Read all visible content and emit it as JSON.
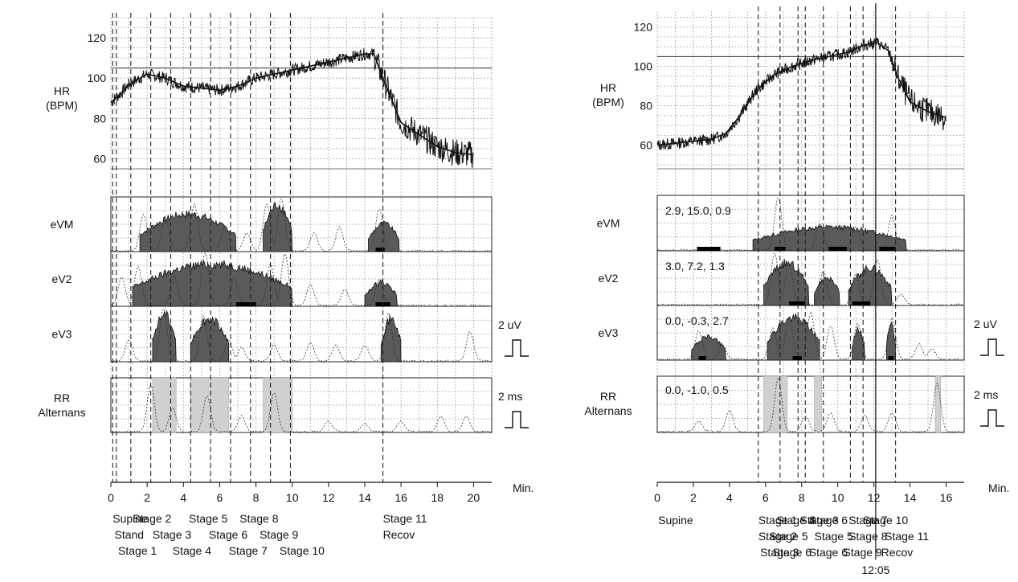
{
  "chart_data": [
    {
      "type": "line",
      "panel": "left",
      "x_unit": "Min.",
      "xlim": [
        0,
        21
      ],
      "x_ticks": [
        0,
        2,
        4,
        6,
        8,
        10,
        12,
        14,
        16,
        18,
        20
      ],
      "hr_ylabel": [
        "HR",
        "(BPM)"
      ],
      "hr_ylim": [
        55,
        130
      ],
      "hr_ticks": [
        60,
        80,
        100,
        120
      ],
      "hr_reference": 105,
      "hr_trend": {
        "x": [
          0,
          0.5,
          1,
          2,
          3,
          4,
          5,
          6,
          7,
          8,
          9,
          10,
          11,
          12,
          13,
          14,
          14.5,
          15,
          16,
          17,
          18,
          19,
          20
        ],
        "y": [
          88,
          92,
          97,
          102,
          100,
          96,
          95,
          94,
          96,
          100,
          102,
          104,
          106,
          108,
          110,
          112,
          112,
          100,
          78,
          72,
          66,
          63,
          62
        ]
      },
      "traces": {
        "eVM": {
          "label": "eVM",
          "annotation": "",
          "blobs": [
            [
              1.6,
              6.9,
              0.8
            ],
            [
              8.4,
              10.0,
              1.0
            ],
            [
              14.2,
              15.9,
              0.6
            ]
          ],
          "peaks": [
            [
              1.8,
              0.7
            ],
            [
              3.0,
              0.62
            ],
            [
              4.6,
              0.9
            ],
            [
              6.3,
              0.5
            ],
            [
              7.5,
              0.35
            ],
            [
              8.6,
              0.9
            ],
            [
              9.4,
              1.0
            ],
            [
              11.2,
              0.35
            ],
            [
              12.6,
              0.45
            ],
            [
              14.8,
              0.8
            ]
          ],
          "bars": [
            [
              14.6,
              15.1
            ]
          ]
        },
        "eV2": {
          "label": "eV2",
          "annotation": "",
          "blobs": [
            [
              1.2,
              10.0,
              0.9
            ],
            [
              14.0,
              15.8,
              0.5
            ]
          ],
          "peaks": [
            [
              0.6,
              0.55
            ],
            [
              1.5,
              0.75
            ],
            [
              3.5,
              0.55
            ],
            [
              5.2,
              1.0
            ],
            [
              6.8,
              0.5
            ],
            [
              8.8,
              0.8
            ],
            [
              9.6,
              1.0
            ],
            [
              11.0,
              0.4
            ],
            [
              12.9,
              0.3
            ],
            [
              14.8,
              0.5
            ]
          ],
          "bars": [
            [
              6.9,
              8.0
            ],
            [
              14.6,
              15.4
            ]
          ]
        },
        "eV3": {
          "label": "eV3",
          "annotation": "",
          "blobs": [
            [
              2.3,
              3.6,
              1.0
            ],
            [
              4.4,
              6.5,
              0.9
            ],
            [
              14.9,
              16.0,
              0.9
            ]
          ],
          "peaks": [
            [
              1.0,
              0.4
            ],
            [
              2.9,
              1.0
            ],
            [
              5.1,
              0.85
            ],
            [
              6.5,
              0.4
            ],
            [
              7.2,
              0.25
            ],
            [
              9.0,
              0.3
            ],
            [
              11.0,
              0.35
            ],
            [
              12.4,
              0.3
            ],
            [
              14.0,
              0.3
            ],
            [
              15.3,
              0.9
            ],
            [
              19.8,
              0.55
            ]
          ],
          "bars": []
        }
      },
      "rr": {
        "label": [
          "RR",
          "Alternans"
        ],
        "shades": [
          [
            2.3,
            3.6
          ],
          [
            4.4,
            6.5
          ],
          [
            8.4,
            10.0
          ]
        ],
        "peaks": [
          [
            2.2,
            0.9
          ],
          [
            3.4,
            0.45
          ],
          [
            5.3,
            0.7
          ],
          [
            7.2,
            0.3
          ],
          [
            9.0,
            0.75
          ],
          [
            12.0,
            0.2
          ],
          [
            14.0,
            0.15
          ],
          [
            16.0,
            0.2
          ],
          [
            18.2,
            0.3
          ],
          [
            19.6,
            0.3
          ]
        ]
      },
      "scale_bars": [
        "2 uV",
        "2 ms"
      ],
      "events": [
        0.1,
        0.3,
        1.1,
        2.2,
        3.3,
        4.4,
        5.5,
        6.6,
        7.7,
        8.8,
        9.9,
        15.0
      ],
      "stage_labels": [
        {
          "x": 0.1,
          "row": 0,
          "text": "Supine"
        },
        {
          "x": 1.2,
          "row": 0,
          "text": "Stage 2"
        },
        {
          "x": 4.3,
          "row": 0,
          "text": "Stage 5"
        },
        {
          "x": 7.1,
          "row": 0,
          "text": "Stage 8"
        },
        {
          "x": 15.0,
          "row": 0,
          "text": "Stage 11"
        },
        {
          "x": 0.2,
          "row": 1,
          "text": "Stand"
        },
        {
          "x": 2.3,
          "row": 1,
          "text": "Stage 3"
        },
        {
          "x": 5.4,
          "row": 1,
          "text": "Stage 6"
        },
        {
          "x": 8.2,
          "row": 1,
          "text": "Stage 9"
        },
        {
          "x": 15.0,
          "row": 1,
          "text": "Recov"
        },
        {
          "x": 0.4,
          "row": 2,
          "text": "Stage 1"
        },
        {
          "x": 3.4,
          "row": 2,
          "text": "Stage 4"
        },
        {
          "x": 6.5,
          "row": 2,
          "text": "Stage 7"
        },
        {
          "x": 9.3,
          "row": 2,
          "text": "Stage 10"
        }
      ],
      "time_annotation": ""
    },
    {
      "type": "line",
      "panel": "right",
      "x_unit": "Min.",
      "xlim": [
        0,
        17
      ],
      "x_ticks": [
        0,
        2,
        4,
        6,
        8,
        10,
        12,
        14,
        16
      ],
      "hr_ylabel": [
        "HR",
        "(BPM)"
      ],
      "hr_ylim": [
        48,
        128
      ],
      "hr_ticks": [
        60,
        80,
        100,
        120
      ],
      "hr_reference": 105,
      "hr_trend": {
        "x": [
          0,
          1,
          2,
          3,
          3.8,
          4.5,
          5.5,
          6.5,
          7.5,
          8.5,
          9.5,
          10.5,
          11.5,
          12.2,
          12.8,
          13.3,
          14,
          15,
          16
        ],
        "y": [
          60,
          61,
          62,
          63,
          66,
          74,
          88,
          96,
          100,
          103,
          105,
          107,
          111,
          112,
          108,
          95,
          82,
          77,
          74
        ]
      },
      "traces": {
        "eVM": {
          "label": "eVM",
          "annotation": "2.9, 15.0, 0.9",
          "blobs": [
            [
              5.3,
              13.8,
              0.5
            ]
          ],
          "peaks": [
            [
              6.7,
              1.0
            ],
            [
              9.0,
              0.5
            ],
            [
              11.0,
              0.45
            ],
            [
              13.0,
              0.65
            ]
          ],
          "bars": [
            [
              2.2,
              3.5
            ],
            [
              6.5,
              7.1
            ],
            [
              9.5,
              10.5
            ],
            [
              12.3,
              13.2
            ]
          ]
        },
        "eV2": {
          "label": "eV2",
          "annotation": "3.0, 7.2, 1.3",
          "blobs": [
            [
              5.9,
              8.4,
              0.9
            ],
            [
              8.7,
              10.1,
              0.6
            ],
            [
              10.6,
              13.0,
              0.8
            ]
          ],
          "peaks": [
            [
              6.5,
              1.0
            ],
            [
              7.3,
              0.8
            ],
            [
              9.2,
              0.65
            ],
            [
              11.0,
              0.6
            ],
            [
              12.2,
              0.85
            ],
            [
              13.5,
              0.2
            ]
          ],
          "bars": [
            [
              7.3,
              8.2
            ],
            [
              10.8,
              11.8
            ]
          ]
        },
        "eV3": {
          "label": "eV3",
          "annotation": "0.0, -0.3, 2.7",
          "blobs": [
            [
              1.9,
              3.8,
              0.5
            ],
            [
              6.1,
              9.0,
              0.9
            ],
            [
              10.8,
              11.5,
              0.65
            ],
            [
              12.7,
              13.2,
              0.75
            ]
          ],
          "peaks": [
            [
              2.3,
              0.55
            ],
            [
              3.6,
              0.3
            ],
            [
              6.4,
              0.6
            ],
            [
              7.3,
              0.8
            ],
            [
              8.5,
              0.9
            ],
            [
              9.6,
              0.65
            ],
            [
              11.1,
              0.7
            ],
            [
              13.0,
              0.8
            ],
            [
              14.5,
              0.3
            ],
            [
              15.2,
              0.2
            ]
          ],
          "bars": [
            [
              2.3,
              2.7
            ],
            [
              7.5,
              8.0
            ],
            [
              12.8,
              13.1
            ]
          ]
        }
      },
      "rr": {
        "label": [
          "RR",
          "Alternans"
        ],
        "shades": [
          [
            5.9,
            7.2
          ],
          [
            8.7,
            9.1
          ],
          [
            15.4,
            15.7
          ]
        ],
        "peaks": [
          [
            2.3,
            0.2
          ],
          [
            4.0,
            0.4
          ],
          [
            6.7,
            1.0
          ],
          [
            8.2,
            0.3
          ],
          [
            9.6,
            0.35
          ],
          [
            11.5,
            0.3
          ],
          [
            13.0,
            0.35
          ],
          [
            15.5,
            0.9
          ]
        ]
      },
      "scale_bars": [
        "2 uV",
        "2 ms"
      ],
      "events": [
        5.6,
        6.8,
        7.8,
        8.2,
        9.2,
        10.7,
        11.4,
        12.1,
        13.2
      ],
      "stage_labels": [
        {
          "x": 0.05,
          "row": 0,
          "text": "Supine"
        },
        {
          "x": 5.6,
          "row": 0,
          "text": "Stage 1"
        },
        {
          "x": 6.6,
          "row": 0,
          "text": "Stage 4"
        },
        {
          "x": 7.9,
          "row": 0,
          "text": "Stage 3"
        },
        {
          "x": 8.4,
          "row": 0,
          "text": "Stage 6"
        },
        {
          "x": 10.6,
          "row": 0,
          "text": "Stage 7"
        },
        {
          "x": 11.4,
          "row": 0,
          "text": "Stage 10"
        },
        {
          "x": 5.6,
          "row": 1,
          "text": "Stage 2"
        },
        {
          "x": 6.2,
          "row": 1,
          "text": "Stage 5"
        },
        {
          "x": 8.7,
          "row": 1,
          "text": "Stage 5"
        },
        {
          "x": 10.6,
          "row": 1,
          "text": "Stage 8"
        },
        {
          "x": 12.6,
          "row": 1,
          "text": "Stage 11"
        },
        {
          "x": 5.7,
          "row": 2,
          "text": "Stage 3"
        },
        {
          "x": 6.4,
          "row": 2,
          "text": "Stage 6"
        },
        {
          "x": 8.4,
          "row": 2,
          "text": "Stage 6"
        },
        {
          "x": 10.3,
          "row": 2,
          "text": "Stage 9"
        },
        {
          "x": 12.4,
          "row": 2,
          "text": "Recov"
        }
      ],
      "time_annotation": {
        "x": 12.1,
        "text": "12:05"
      }
    }
  ]
}
